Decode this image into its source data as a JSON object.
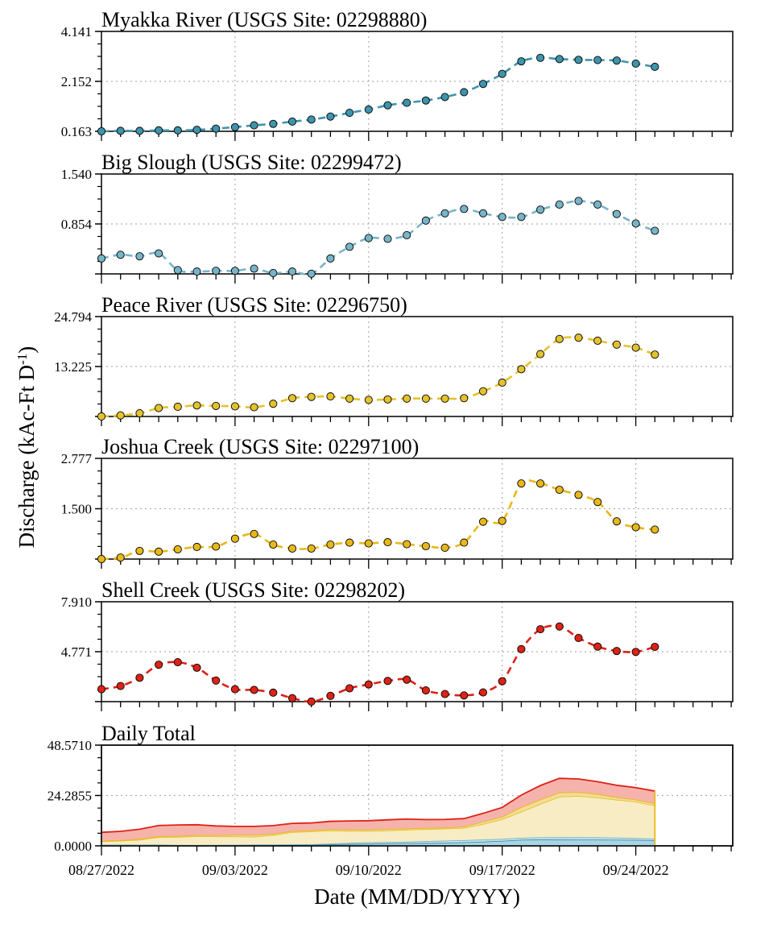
{
  "x_label": "Date (MM/DD/YYYY)",
  "y_label": "Discharge (kAc-Ft D",
  "y_label_sup": "-1",
  "x_tick_labels": [
    "08/27/2022",
    "09/03/2022",
    "09/10/2022",
    "09/17/2022",
    "09/24/2022"
  ],
  "chart_data": [
    {
      "type": "line",
      "title": "Myakka River (USGS Site: 02298880)",
      "color": "#3d94ab",
      "ylim": [
        0.163,
        4.141
      ],
      "yticks": [
        "0.163",
        "2.152",
        "4.141"
      ],
      "x": [
        "08/27/2022",
        "08/28/2022",
        "08/29/2022",
        "08/30/2022",
        "08/31/2022",
        "09/01/2022",
        "09/02/2022",
        "09/03/2022",
        "09/04/2022",
        "09/05/2022",
        "09/06/2022",
        "09/07/2022",
        "09/08/2022",
        "09/09/2022",
        "09/10/2022",
        "09/11/2022",
        "09/12/2022",
        "09/13/2022",
        "09/14/2022",
        "09/15/2022",
        "09/16/2022",
        "09/17/2022",
        "09/18/2022",
        "09/19/2022",
        "09/20/2022",
        "09/21/2022",
        "09/22/2022",
        "09/23/2022",
        "09/24/2022",
        "09/25/2022"
      ],
      "values": [
        0.163,
        0.18,
        0.18,
        0.2,
        0.2,
        0.22,
        0.27,
        0.33,
        0.4,
        0.46,
        0.55,
        0.63,
        0.75,
        0.9,
        1.03,
        1.2,
        1.3,
        1.39,
        1.53,
        1.72,
        2.05,
        2.45,
        2.95,
        3.09,
        3.04,
        3.01,
        3.0,
        2.98,
        2.86,
        2.73
      ]
    },
    {
      "type": "line",
      "title": "Big Slough (USGS Site: 02299472)",
      "color": "#78b4c8",
      "ylim": [
        0.168,
        1.54
      ],
      "yticks": [
        "",
        "0.854",
        "1.540"
      ],
      "x": [
        "08/27/2022",
        "08/28/2022",
        "08/29/2022",
        "08/30/2022",
        "08/31/2022",
        "09/01/2022",
        "09/02/2022",
        "09/03/2022",
        "09/04/2022",
        "09/05/2022",
        "09/06/2022",
        "09/07/2022",
        "09/08/2022",
        "09/09/2022",
        "09/10/2022",
        "09/11/2022",
        "09/12/2022",
        "09/13/2022",
        "09/14/2022",
        "09/15/2022",
        "09/16/2022",
        "09/17/2022",
        "09/18/2022",
        "09/19/2022",
        "09/20/2022",
        "09/21/2022",
        "09/22/2022",
        "09/23/2022",
        "09/24/2022",
        "09/25/2022"
      ],
      "values": [
        0.38,
        0.43,
        0.41,
        0.45,
        0.22,
        0.2,
        0.21,
        0.21,
        0.24,
        0.18,
        0.2,
        0.17,
        0.38,
        0.54,
        0.66,
        0.65,
        0.7,
        0.9,
        1.0,
        1.06,
        1.0,
        0.95,
        0.95,
        1.05,
        1.12,
        1.17,
        1.12,
        0.99,
        0.86,
        0.76
      ]
    },
    {
      "type": "line",
      "title": "Peace River (USGS Site: 02296750)",
      "color": "#e3c22e",
      "ylim": [
        1.656,
        24.794
      ],
      "yticks": [
        "",
        "13.225",
        "24.794"
      ],
      "x": [
        "08/27/2022",
        "08/28/2022",
        "08/29/2022",
        "08/30/2022",
        "08/31/2022",
        "09/01/2022",
        "09/02/2022",
        "09/03/2022",
        "09/04/2022",
        "09/05/2022",
        "09/06/2022",
        "09/07/2022",
        "09/08/2022",
        "09/09/2022",
        "09/10/2022",
        "09/11/2022",
        "09/12/2022",
        "09/13/2022",
        "09/14/2022",
        "09/15/2022",
        "09/16/2022",
        "09/17/2022",
        "09/18/2022",
        "09/19/2022",
        "09/20/2022",
        "09/21/2022",
        "09/22/2022",
        "09/23/2022",
        "09/24/2022",
        "09/25/2022"
      ],
      "values": [
        1.66,
        1.9,
        2.4,
        3.6,
        3.9,
        4.2,
        4.1,
        4.0,
        3.8,
        4.6,
        5.9,
        6.2,
        6.3,
        5.8,
        5.5,
        5.6,
        5.8,
        5.8,
        5.8,
        5.9,
        7.5,
        9.5,
        12.6,
        16.1,
        19.6,
        19.9,
        19.2,
        18.3,
        17.6,
        16.0
      ]
    },
    {
      "type": "line",
      "title": "Joshua Creek (USGS Site: 02297100)",
      "color": "#e8b81a",
      "ylim": [
        0.223,
        2.777
      ],
      "yticks": [
        "",
        "1.500",
        "2.777"
      ],
      "x": [
        "08/27/2022",
        "08/28/2022",
        "08/29/2022",
        "08/30/2022",
        "08/31/2022",
        "09/01/2022",
        "09/02/2022",
        "09/03/2022",
        "09/04/2022",
        "09/05/2022",
        "09/06/2022",
        "09/07/2022",
        "09/08/2022",
        "09/09/2022",
        "09/10/2022",
        "09/11/2022",
        "09/12/2022",
        "09/13/2022",
        "09/14/2022",
        "09/15/2022",
        "09/16/2022",
        "09/17/2022",
        "09/18/2022",
        "09/19/2022",
        "09/20/2022",
        "09/21/2022",
        "09/22/2022",
        "09/23/2022",
        "09/24/2022",
        "09/25/2022"
      ],
      "values": [
        0.223,
        0.26,
        0.43,
        0.41,
        0.47,
        0.53,
        0.54,
        0.74,
        0.86,
        0.59,
        0.49,
        0.49,
        0.59,
        0.64,
        0.62,
        0.65,
        0.6,
        0.55,
        0.51,
        0.64,
        1.17,
        1.19,
        2.14,
        2.14,
        1.98,
        1.85,
        1.67,
        1.18,
        1.03,
        0.97
      ]
    },
    {
      "type": "line",
      "title": "Shell Creek (USGS Site: 02298202)",
      "color": "#dd2217",
      "ylim": [
        3.548,
        7.91
      ],
      "yticks": [
        "",
        "4.771",
        "7.910"
      ],
      "x": [
        "08/27/2022",
        "08/28/2022",
        "08/29/2022",
        "08/30/2022",
        "08/31/2022",
        "09/01/2022",
        "09/02/2022",
        "09/03/2022",
        "09/04/2022",
        "09/05/2022",
        "09/06/2022",
        "09/07/2022",
        "09/08/2022",
        "09/09/2022",
        "09/10/2022",
        "09/11/2022",
        "09/12/2022",
        "09/13/2022",
        "09/14/2022",
        "09/15/2022",
        "09/16/2022",
        "09/17/2022",
        "09/18/2022",
        "09/19/2022",
        "09/20/2022",
        "09/21/2022",
        "09/22/2022",
        "09/23/2022",
        "09/24/2022",
        "09/25/2022"
      ],
      "values": [
        4.09,
        4.23,
        4.59,
        5.16,
        5.27,
        5.03,
        4.47,
        4.09,
        4.06,
        3.94,
        3.7,
        3.55,
        3.8,
        4.13,
        4.3,
        4.45,
        4.51,
        4.04,
        3.88,
        3.82,
        3.95,
        4.44,
        5.84,
        6.71,
        6.83,
        6.33,
        5.95,
        5.76,
        5.72,
        5.94
      ]
    },
    {
      "type": "area",
      "title": "Daily Total",
      "stacked": true,
      "ylim": [
        0.0,
        48.571
      ],
      "yticks": [
        "0.0000",
        "24.2855",
        "48.5710"
      ],
      "x": [
        "08/27/2022",
        "08/28/2022",
        "08/29/2022",
        "08/30/2022",
        "08/31/2022",
        "09/01/2022",
        "09/02/2022",
        "09/03/2022",
        "09/04/2022",
        "09/05/2022",
        "09/06/2022",
        "09/07/2022",
        "09/08/2022",
        "09/09/2022",
        "09/10/2022",
        "09/11/2022",
        "09/12/2022",
        "09/13/2022",
        "09/14/2022",
        "09/15/2022",
        "09/16/2022",
        "09/17/2022",
        "09/18/2022",
        "09/19/2022",
        "09/20/2022",
        "09/21/2022",
        "09/22/2022",
        "09/23/2022",
        "09/24/2022",
        "09/25/2022"
      ],
      "series": [
        {
          "color": "#3d94ab",
          "fill": "#a9d4e4"
        },
        {
          "color": "#78b4c8",
          "fill": "#c4e2ec"
        },
        {
          "color": "#e3c22e",
          "fill": "#f8ecc4"
        },
        {
          "color": "#e8b81a",
          "fill": "#f3dd95"
        },
        {
          "color": "#dd2217",
          "fill": "#f5b3ac"
        }
      ],
      "totals_note_from_panels": true
    }
  ]
}
